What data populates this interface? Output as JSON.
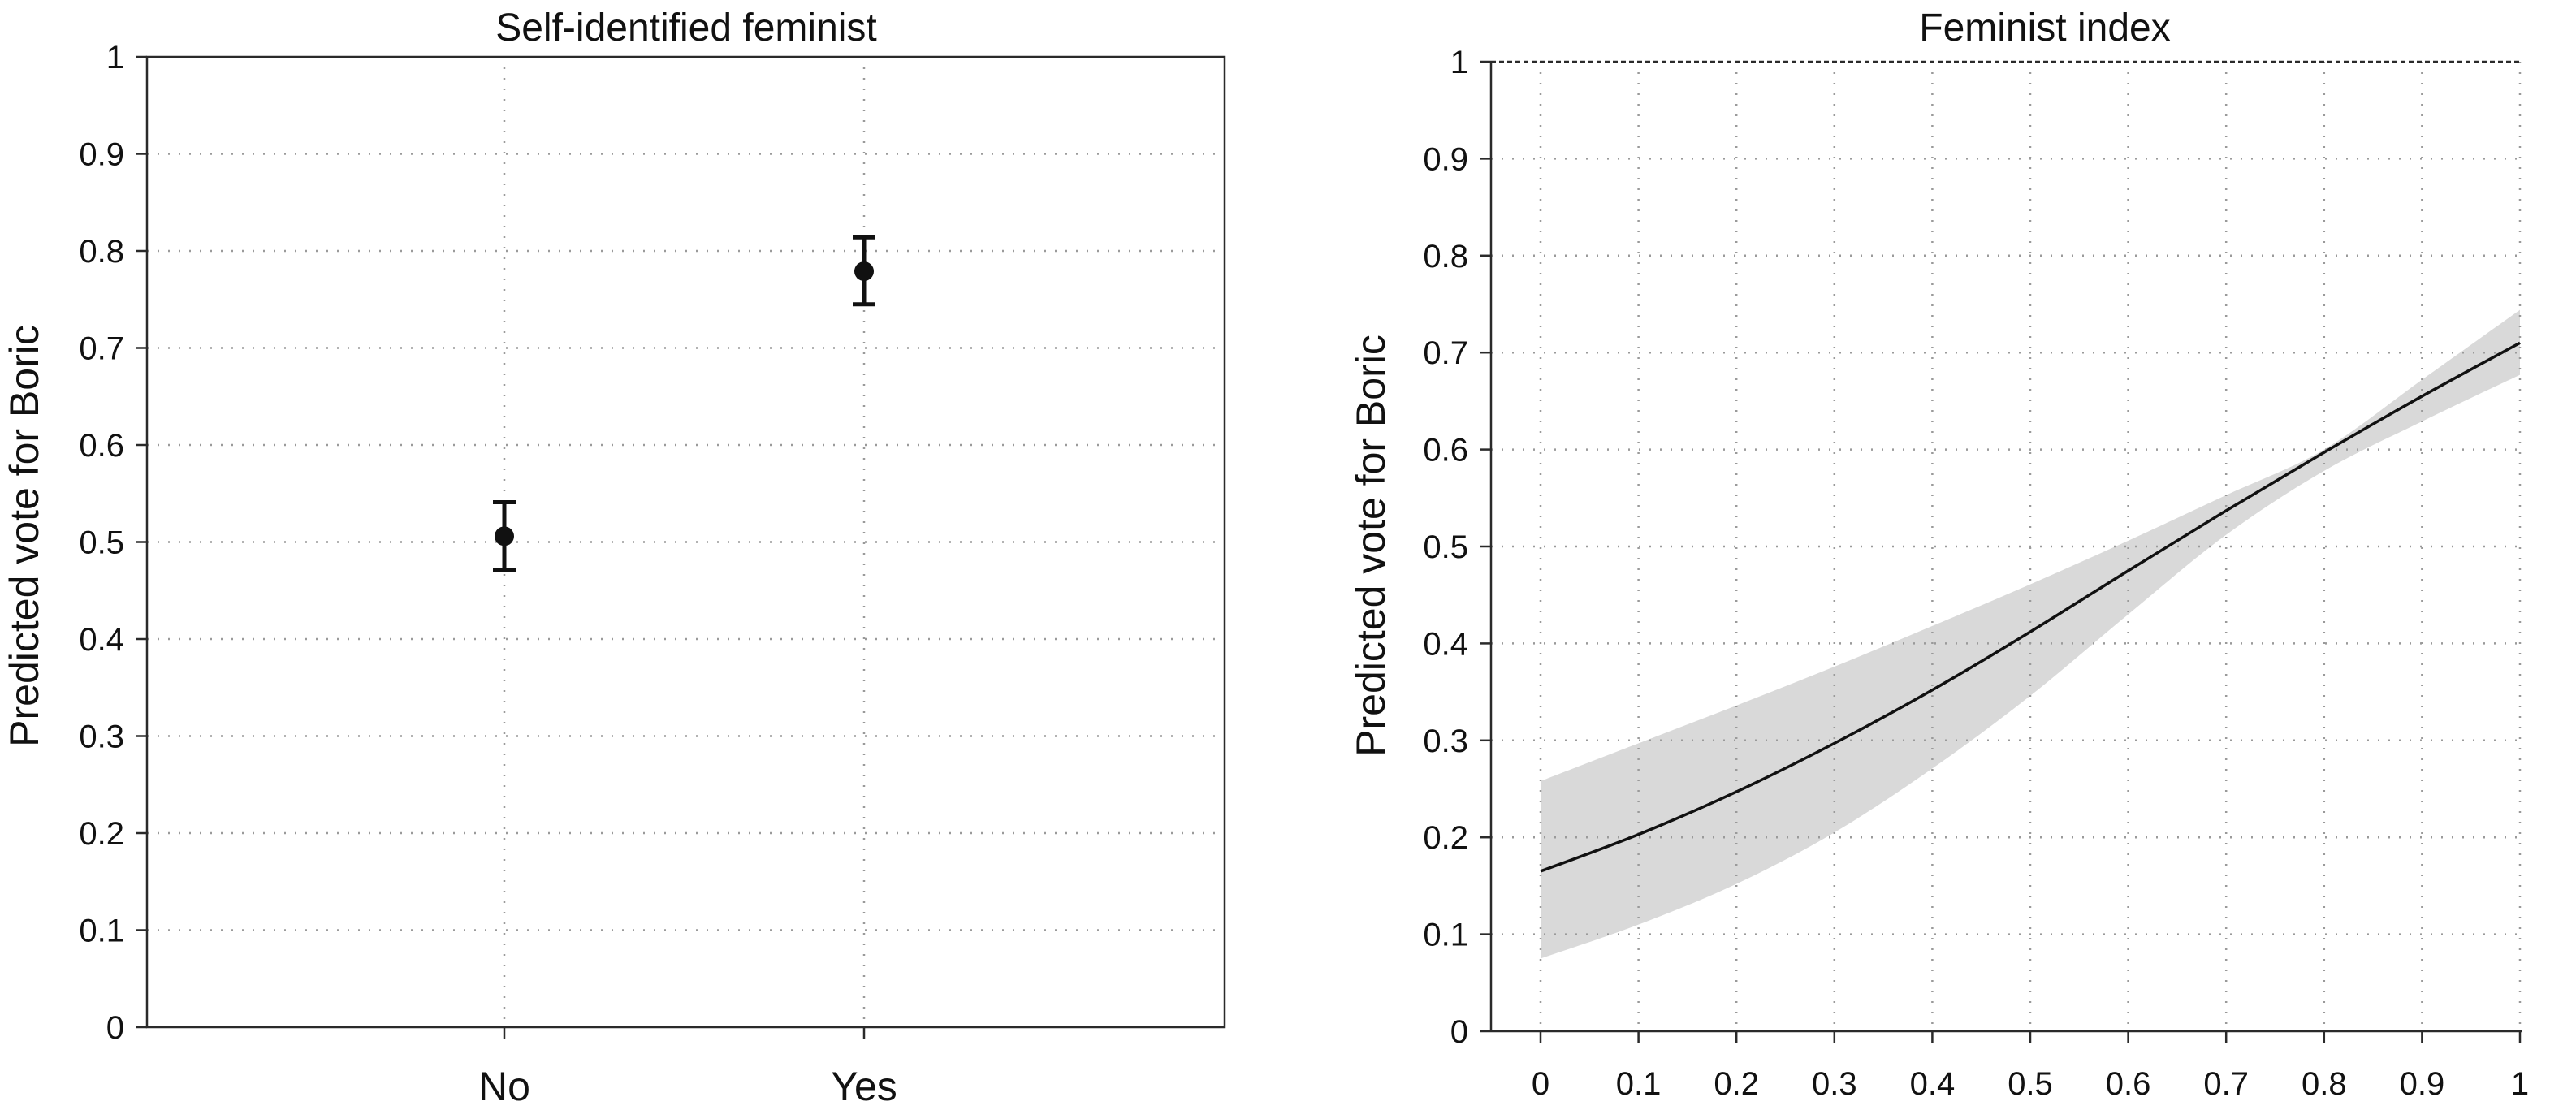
{
  "chart_data": [
    {
      "type": "scatter",
      "title": "Self-identified feminist",
      "xlabel": "",
      "ylabel": "Predicted vote for Boric",
      "ylim": [
        0,
        1
      ],
      "yticks": [
        "0",
        "0.1",
        "0.2",
        "0.3",
        "0.4",
        "0.5",
        "0.6",
        "0.7",
        "0.8",
        "0.9",
        "1"
      ],
      "grid": true,
      "categories": [
        "No",
        "Yes"
      ],
      "points": [
        {
          "category": "No",
          "value": 0.506,
          "ci_low": 0.471,
          "ci_high": 0.541
        },
        {
          "category": "Yes",
          "value": 0.779,
          "ci_low": 0.745,
          "ci_high": 0.814
        }
      ],
      "colors": {
        "marker": "#111111",
        "grid": "#9a9a9a"
      }
    },
    {
      "type": "line",
      "title": "Feminist index",
      "xlabel": "",
      "ylabel": "Predicted vote for Boric",
      "xlim": [
        0,
        1
      ],
      "ylim": [
        0,
        1
      ],
      "xticks": [
        "0",
        "0.1",
        "0.2",
        "0.3",
        "0.4",
        "0.5",
        "0.6",
        "0.7",
        "0.8",
        "0.9",
        "1"
      ],
      "yticks": [
        "0",
        "0.1",
        "0.2",
        "0.3",
        "0.4",
        "0.5",
        "0.6",
        "0.7",
        "0.8",
        "0.9",
        "1"
      ],
      "grid": true,
      "x": [
        0,
        0.1,
        0.2,
        0.3,
        0.4,
        0.5,
        0.6,
        0.7,
        0.8,
        0.9,
        1
      ],
      "series": [
        {
          "name": "prediction",
          "values": [
            0.165,
            0.203,
            0.247,
            0.297,
            0.352,
            0.412,
            0.475,
            0.537,
            0.597,
            0.655,
            0.71
          ]
        },
        {
          "name": "ci_upper",
          "values": [
            0.258,
            0.297,
            0.336,
            0.376,
            0.418,
            0.461,
            0.506,
            0.553,
            0.6,
            0.672,
            0.744
          ]
        },
        {
          "name": "ci_lower",
          "values": [
            0.075,
            0.11,
            0.152,
            0.205,
            0.271,
            0.346,
            0.43,
            0.512,
            0.578,
            0.629,
            0.677
          ]
        }
      ],
      "colors": {
        "line": "#111111",
        "band": "#d9d9d9",
        "grid": "#9a9a9a"
      }
    }
  ]
}
